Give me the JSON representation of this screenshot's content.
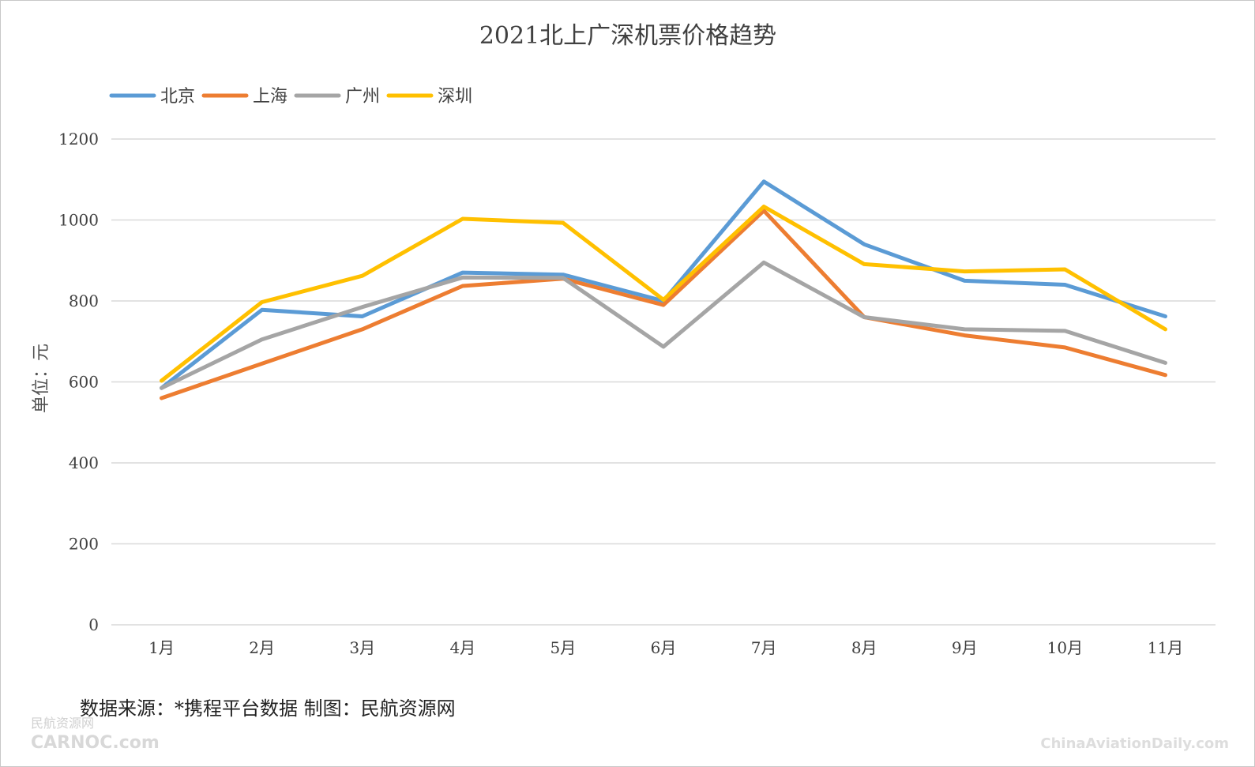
{
  "chart_data": {
    "type": "line",
    "title": "2021北上广深机票价格趋势",
    "xlabel": "",
    "ylabel": "单位：元",
    "ylim": [
      0,
      1200
    ],
    "yticks": [
      "0",
      "200",
      "400",
      "600",
      "800",
      "1000",
      "1200"
    ],
    "grid": true,
    "legend_position": "top-left",
    "categories": [
      "1月",
      "2月",
      "3月",
      "4月",
      "5月",
      "6月",
      "7月",
      "8月",
      "9月",
      "10月",
      "11月"
    ],
    "series": [
      {
        "name": "北京",
        "color": "#5b9bd5",
        "values": [
          585,
          778,
          762,
          870,
          865,
          800,
          1095,
          940,
          850,
          840,
          762
        ]
      },
      {
        "name": "上海",
        "color": "#ed7d31",
        "values": [
          560,
          645,
          730,
          837,
          855,
          790,
          1023,
          760,
          715,
          685,
          617
        ]
      },
      {
        "name": "广州",
        "color": "#a5a5a5",
        "values": [
          585,
          705,
          785,
          858,
          857,
          687,
          895,
          760,
          730,
          726,
          647
        ]
      },
      {
        "name": "深圳",
        "color": "#ffc000",
        "values": [
          603,
          797,
          862,
          1003,
          993,
          803,
          1033,
          891,
          873,
          878,
          730
        ]
      }
    ]
  },
  "footer": {
    "source": "数据来源：*携程平台数据 制图：民航资源网"
  },
  "watermarks": {
    "left_cn": "民航资源网",
    "left_en": "CARNOC.com",
    "right_en": "ChinaAviationDaily.com"
  }
}
